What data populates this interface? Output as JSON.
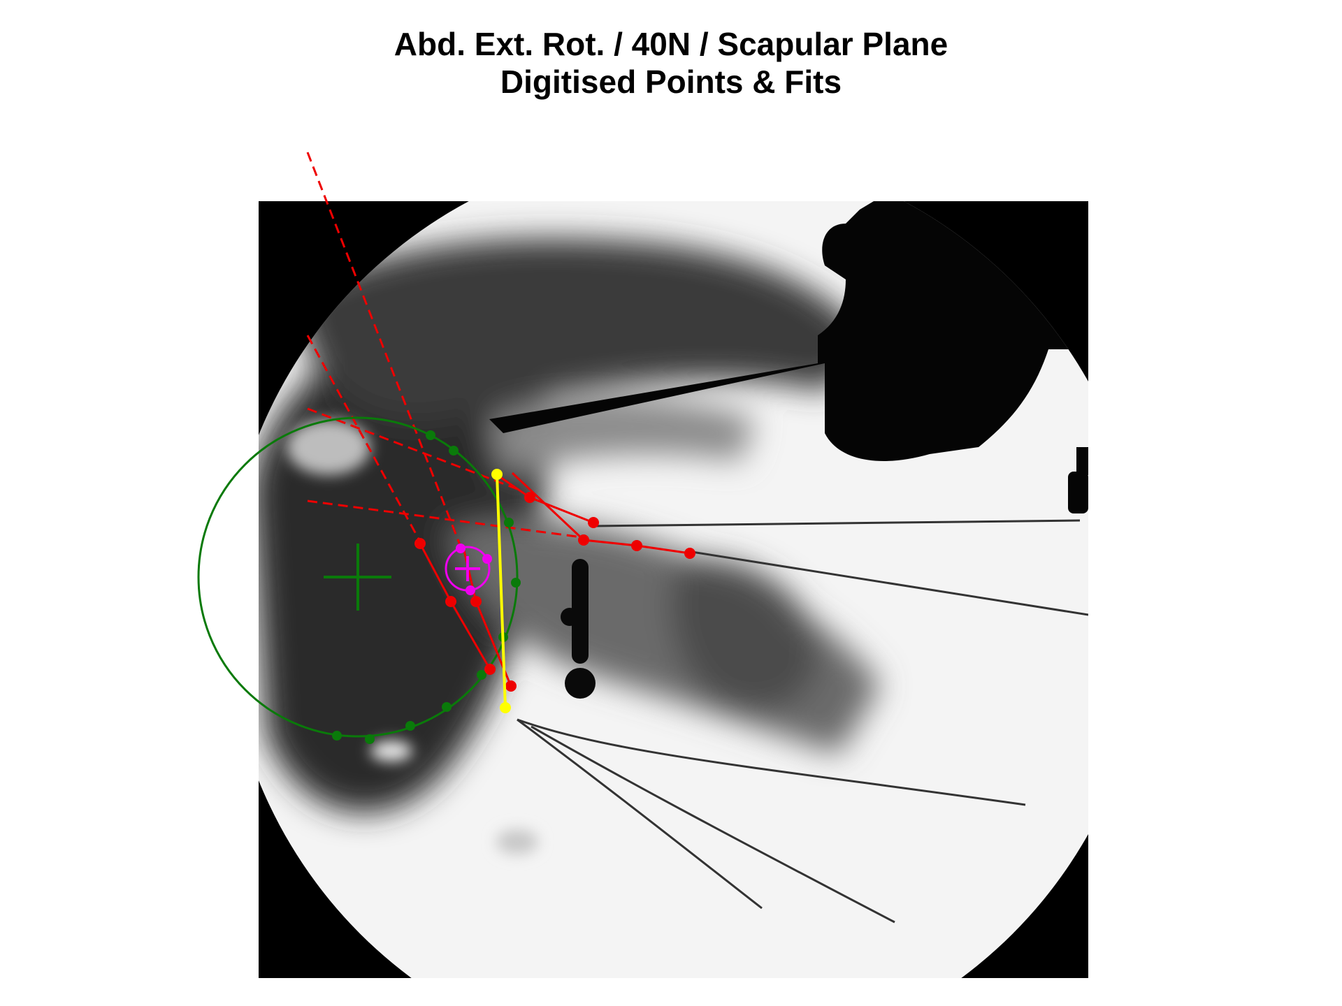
{
  "title": {
    "line1": "Abd. Ext. Rot. / 40N / Scapular Plane",
    "line2": "Digitised Points & Fits"
  },
  "colors": {
    "background": "#ffffff",
    "xray_frame": "#000000",
    "humeral_head_fit": "#0a7a0a",
    "glenoid_lines": "#ee0000",
    "glenoid_center_fit": "#ee00ee",
    "glenoid_axis": "#ffff00"
  },
  "overlays": {
    "humeral_head_fit": {
      "color_name": "green",
      "markers": "center-cross"
    },
    "glenoid_center_fit": {
      "color_name": "magenta",
      "markers": "center-cross"
    },
    "glenoid_axis": {
      "color_name": "yellow"
    },
    "extension_lines": {
      "color_name": "red",
      "style": "dashed"
    }
  }
}
